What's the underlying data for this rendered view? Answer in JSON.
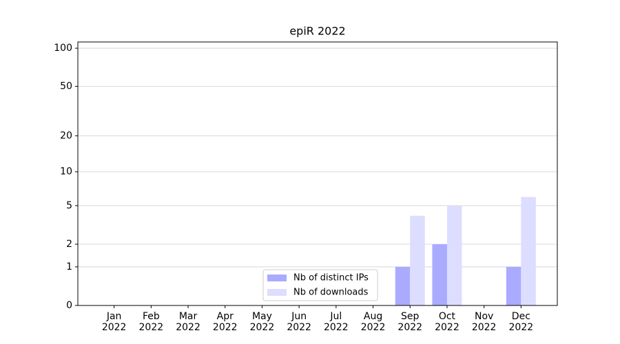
{
  "chart_data": {
    "type": "bar",
    "title": "epiR 2022",
    "categories": [
      "Jan\n2022",
      "Feb\n2022",
      "Mar\n2022",
      "Apr\n2022",
      "May\n2022",
      "Jun\n2022",
      "Jul\n2022",
      "Aug\n2022",
      "Sep\n2022",
      "Oct\n2022",
      "Nov\n2022",
      "Dec\n2022"
    ],
    "series": [
      {
        "name": "Nb of distinct IPs",
        "color": "#aaaaff",
        "values": [
          0,
          0,
          0,
          0,
          0,
          0,
          0,
          0,
          1,
          2,
          0,
          1
        ]
      },
      {
        "name": "Nb of downloads",
        "color": "#ddddff",
        "values": [
          0,
          0,
          0,
          0,
          0,
          0,
          0,
          0,
          4,
          5,
          0,
          6
        ]
      }
    ],
    "yscale": "log1p",
    "ylim": [
      0,
      112
    ],
    "yticks": [
      0,
      1,
      2,
      5,
      10,
      20,
      50,
      100
    ],
    "grid": true,
    "legend": "lower center"
  }
}
